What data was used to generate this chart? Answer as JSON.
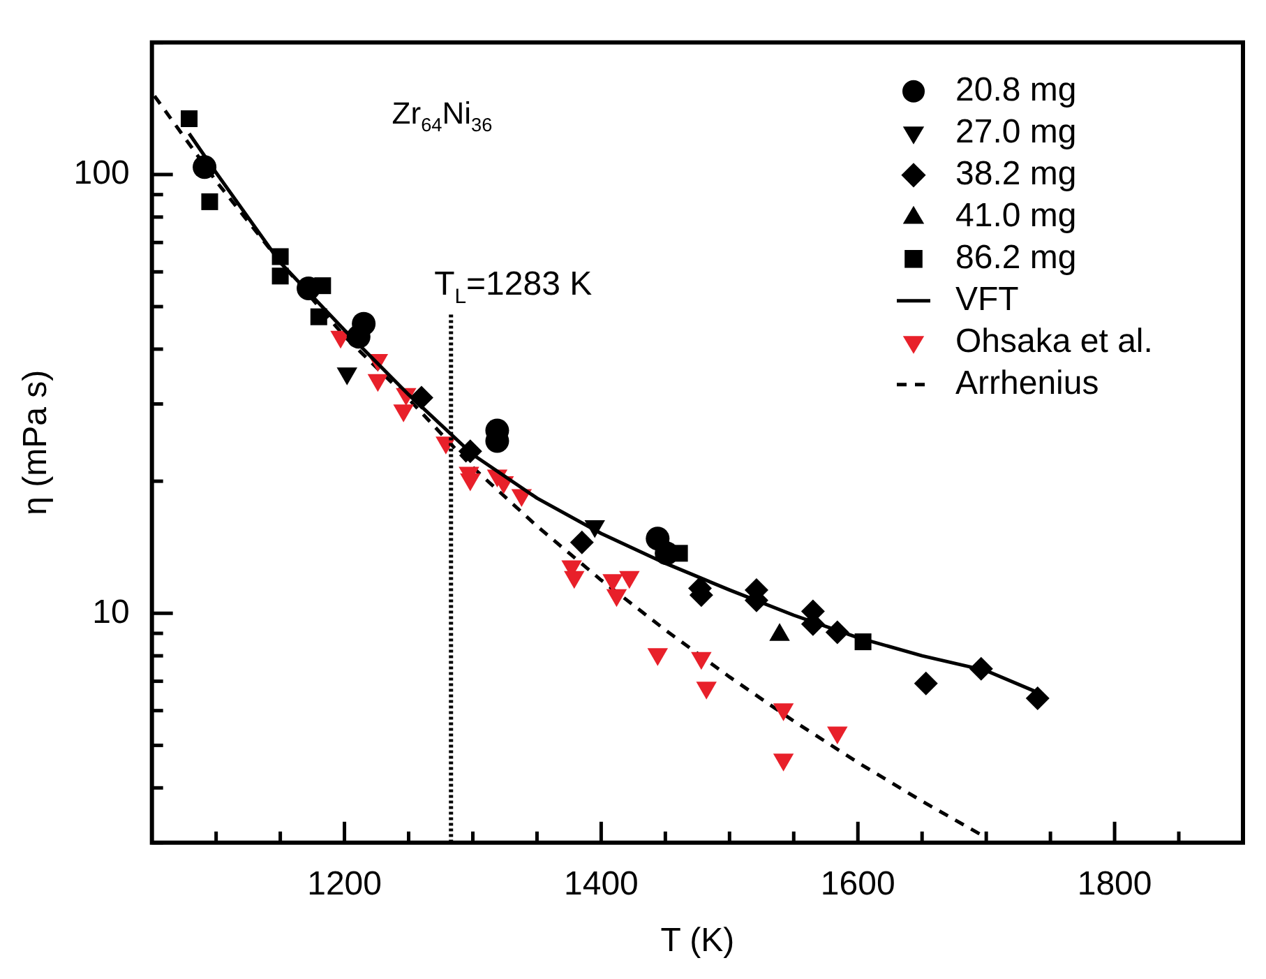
{
  "chart_data": {
    "type": "scatter",
    "xlabel": "T (K)",
    "ylabel": "η (mPa s)",
    "annotations": [
      "Zr$_{64}$Ni$_{36}$"
    ],
    "log": "y",
    "legend": "top right",
    "xlim": [
      1050,
      1900
    ],
    "ylim": [
      3,
      200
    ],
    "xticks": [
      {
        "value": 1100,
        "label": null
      },
      {
        "value": 1150,
        "label": null
      },
      1200,
      {
        "value": 1250,
        "label": null
      },
      {
        "value": 1300,
        "label": null
      },
      {
        "value": 1350,
        "label": null
      },
      1400,
      {
        "value": 1450,
        "label": null
      },
      {
        "value": 1500,
        "label": null
      },
      {
        "value": 1550,
        "label": null
      },
      1600,
      {
        "value": 1650,
        "label": null
      },
      {
        "value": 1700,
        "label": null
      },
      {
        "value": 1750,
        "label": null
      },
      1800,
      {
        "value": 1850,
        "label": null
      }
    ],
    "yticks": [
      {
        "value": 3,
        "label": null
      },
      {
        "value": 4,
        "label": null
      },
      {
        "value": 5,
        "label": null
      },
      {
        "value": 6,
        "label": null
      },
      {
        "value": 7,
        "label": null
      },
      {
        "value": 8,
        "label": null
      },
      {
        "value": 9,
        "label": null
      },
      10,
      {
        "value": 20,
        "label": null
      },
      {
        "value": 30,
        "label": null
      },
      {
        "value": 40,
        "label": null
      },
      {
        "value": 50,
        "label": null
      },
      {
        "value": 60,
        "label": null
      },
      {
        "value": 70,
        "label": null
      },
      {
        "value": 80,
        "label": null
      },
      {
        "value": 90,
        "label": null
      },
      100,
      {
        "value": 200,
        "label": null
      }
    ],
    "ref_lines": [
      {
        "axis": "x",
        "value": 1283,
        "label": "T$_{L}$=1283 K",
        "color": "#000000",
        "line_style": "dotted"
      }
    ],
    "series": [
      {
        "name": "20.8 mg",
        "marker": "circle",
        "color": "#000000",
        "x": [
          1091,
          1172,
          1215,
          1211,
          1319,
          1319,
          1444,
          1451
        ],
        "values": [
          104,
          55,
          45.7,
          42.7,
          26.1,
          24.7,
          14.8,
          13.7
        ]
      },
      {
        "name": "27.0 mg",
        "marker": "triangle-down",
        "color": "#000000",
        "x": [
          1202,
          1395
        ],
        "values": [
          35.2,
          15.8
        ]
      },
      {
        "name": "38.2 mg",
        "marker": "diamond",
        "color": "#000000",
        "x": [
          1260,
          1298,
          1385,
          1477,
          1478,
          1521,
          1521,
          1565,
          1565,
          1584,
          1653,
          1696,
          1740
        ],
        "values": [
          31,
          23.4,
          14.5,
          11.4,
          11,
          11.3,
          10.7,
          10.1,
          9.45,
          9.05,
          6.92,
          7.47,
          6.4
        ]
      },
      {
        "name": "41.0 mg",
        "marker": "triangle",
        "color": "#000000",
        "x": [
          1539
        ],
        "values": [
          8.93
        ]
      },
      {
        "name": "86.2 mg",
        "marker": "square",
        "color": "#000000",
        "x": [
          1079,
          1095,
          1150,
          1150,
          1183,
          1180,
          1461,
          1604
        ],
        "values": [
          134,
          86.7,
          65,
          58.7,
          55.8,
          47.4,
          13.7,
          8.61
        ]
      },
      {
        "name": "VFT",
        "type": "line",
        "marker": "none",
        "line_style": "solid",
        "color": "#000000",
        "x": [
          1079,
          1100,
          1150,
          1200,
          1250,
          1300,
          1350,
          1400,
          1450,
          1500,
          1550,
          1600,
          1650,
          1700,
          1740
        ],
        "values": [
          124,
          101,
          63,
          44.2,
          31.5,
          23,
          18.3,
          15.2,
          13,
          11.3,
          9.9,
          8.8,
          8,
          7.4,
          6.6
        ]
      },
      {
        "name": "Ohsaka et al.",
        "marker": "triangle-down",
        "color": "#e8202a",
        "x": [
          1197,
          1226,
          1226,
          1248,
          1246,
          1279,
          1297,
          1298,
          1319,
          1324,
          1338,
          1377,
          1379,
          1409,
          1422,
          1412,
          1444,
          1478,
          1482,
          1542,
          1542,
          1584
        ],
        "values": [
          42.7,
          37.8,
          34,
          31.6,
          29,
          24.5,
          20.9,
          20.2,
          20.6,
          19.9,
          18.6,
          12.8,
          12.1,
          11.9,
          12.1,
          11,
          8.07,
          7.91,
          6.77,
          6.04,
          4.64,
          5.35
        ]
      },
      {
        "name": "Arrhenius",
        "type": "line",
        "marker": "none",
        "line_style": "dashed",
        "color": "#000000",
        "x": [
          1052,
          1100,
          1150,
          1200,
          1250,
          1300,
          1350,
          1400,
          1450,
          1500,
          1550,
          1600,
          1650,
          1700
        ],
        "values": [
          151,
          96.6,
          63.2,
          42.8,
          30.8,
          21.5,
          15.8,
          11.9,
          9.16,
          7.16,
          5.68,
          4.57,
          3.73,
          3.08
        ]
      }
    ]
  }
}
